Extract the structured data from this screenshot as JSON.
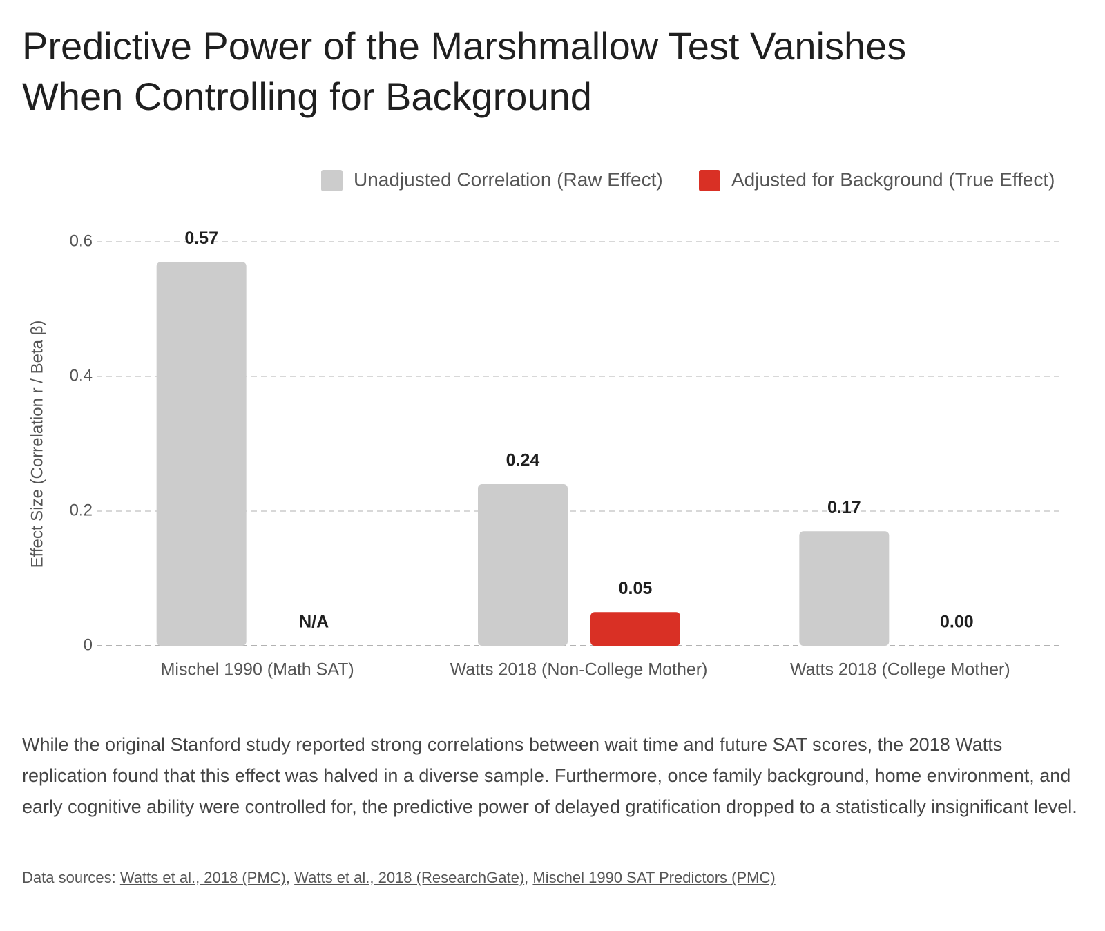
{
  "chart_data": {
    "type": "bar",
    "title": "Predictive Power of the Marshmallow Test Vanishes When Controlling for Background",
    "y_label": "Effect Size (Correlation r / Beta β)",
    "categories": [
      "Mischel 1990 (Math SAT)",
      "Watts 2018 (Non-College Mother)",
      "Watts 2018 (College Mother)"
    ],
    "series": [
      {
        "name": "Unadjusted Correlation (Raw Effect)",
        "color": "#cccccc",
        "values": [
          0.57,
          0.24,
          0.17
        ]
      },
      {
        "name": "Adjusted for Background (True Effect)",
        "color": "#d93025",
        "values": [
          null,
          0.05,
          0
        ],
        "value_labels": [
          "N/A",
          "0.05",
          "0.00"
        ]
      }
    ],
    "ylim": [
      0,
      0.6
    ],
    "yticks": [
      0,
      0.2,
      0.4,
      0.6
    ],
    "grid": true,
    "legend": "top-right"
  },
  "description": "While the original Stanford study reported strong correlations between wait time and future SAT scores, the 2018 Watts replication found that this effect was halved in a diverse sample. Furthermore, once family background, home environment, and early cognitive ability were controlled for, the predictive power of delayed gratification dropped to a statistically insignificant level.",
  "sources": {
    "label": "Data sources:",
    "separator": ",",
    "links": [
      "Watts et al., 2018 (PMC)",
      "Watts et al., 2018 (ResearchGate)",
      "Mischel 1990 SAT Predictors (PMC)"
    ]
  }
}
